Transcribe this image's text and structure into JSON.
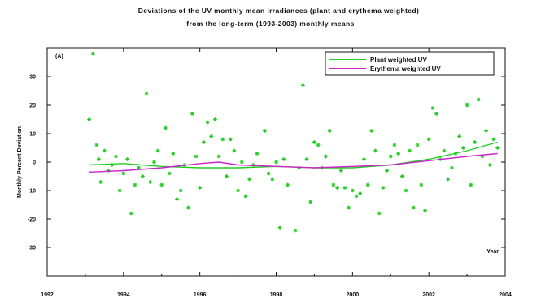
{
  "title_line1": "Deviations of the UV monthly mean irradiances (plant and erythema weighted)",
  "title_line2": "from the long-term (1993-2003) monthly means",
  "colors": {
    "plant": "#22cc22",
    "erythema": "#cc22cc",
    "axis": "#111111"
  },
  "chart_data": {
    "type": "scatter",
    "panel_label": "(A)",
    "xlabel": "Year",
    "ylabel": "Monthly Percent Deviation",
    "xlim": [
      1992,
      2004
    ],
    "ylim": [
      -40,
      40
    ],
    "x_ticks": [
      1992,
      1994,
      1996,
      1998,
      2000,
      2002,
      2004
    ],
    "y_ticks": [
      30,
      20,
      10,
      0,
      -10,
      -20,
      -30
    ],
    "legend": [
      {
        "label": "Plant weighted UV",
        "color": "#22cc22"
      },
      {
        "label": "Erythema weighted UV",
        "color": "#cc22cc"
      }
    ],
    "legend_position": "top-right",
    "grid": false,
    "series": [
      {
        "name": "Plant weighted UV",
        "kind": "scatter",
        "marker": "star",
        "color": "#22cc22",
        "points": [
          [
            1993.1,
            15
          ],
          [
            1993.2,
            38
          ],
          [
            1993.3,
            6
          ],
          [
            1993.35,
            1
          ],
          [
            1993.4,
            -7
          ],
          [
            1993.5,
            4
          ],
          [
            1993.6,
            -3
          ],
          [
            1993.7,
            -1
          ],
          [
            1993.8,
            2
          ],
          [
            1993.9,
            -10
          ],
          [
            1994.0,
            -4
          ],
          [
            1994.1,
            1
          ],
          [
            1994.2,
            -18
          ],
          [
            1994.3,
            -8
          ],
          [
            1994.4,
            -2
          ],
          [
            1994.5,
            -5
          ],
          [
            1994.6,
            24
          ],
          [
            1994.7,
            -7
          ],
          [
            1994.8,
            0
          ],
          [
            1994.9,
            4
          ],
          [
            1995.0,
            -8
          ],
          [
            1995.1,
            12
          ],
          [
            1995.2,
            -4
          ],
          [
            1995.3,
            3
          ],
          [
            1995.4,
            -13
          ],
          [
            1995.5,
            -10
          ],
          [
            1995.6,
            -1
          ],
          [
            1995.7,
            -16
          ],
          [
            1995.8,
            17
          ],
          [
            1995.9,
            2
          ],
          [
            1996.0,
            -9
          ],
          [
            1996.1,
            7
          ],
          [
            1996.2,
            14
          ],
          [
            1996.3,
            9
          ],
          [
            1996.4,
            15
          ],
          [
            1996.5,
            2
          ],
          [
            1996.6,
            8
          ],
          [
            1996.7,
            -5
          ],
          [
            1996.8,
            8
          ],
          [
            1996.9,
            4
          ],
          [
            1997.0,
            -10
          ],
          [
            1997.1,
            0
          ],
          [
            1997.2,
            -12
          ],
          [
            1997.3,
            -6
          ],
          [
            1997.4,
            -1
          ],
          [
            1997.5,
            3
          ],
          [
            1997.7,
            11
          ],
          [
            1997.8,
            -4
          ],
          [
            1997.9,
            -6
          ],
          [
            1998.0,
            0
          ],
          [
            1998.1,
            -23
          ],
          [
            1998.2,
            1
          ],
          [
            1998.3,
            -8
          ],
          [
            1998.5,
            -24
          ],
          [
            1998.6,
            -2
          ],
          [
            1998.7,
            27
          ],
          [
            1998.8,
            1
          ],
          [
            1998.9,
            -14
          ],
          [
            1999.0,
            7
          ],
          [
            1999.1,
            6
          ],
          [
            1999.2,
            -2
          ],
          [
            1999.3,
            2
          ],
          [
            1999.4,
            11
          ],
          [
            1999.5,
            -8
          ],
          [
            1999.6,
            -9
          ],
          [
            1999.7,
            -3
          ],
          [
            1999.8,
            -9
          ],
          [
            1999.9,
            -16
          ],
          [
            2000.0,
            -10
          ],
          [
            2000.1,
            -12
          ],
          [
            2000.2,
            -11
          ],
          [
            2000.3,
            1
          ],
          [
            2000.4,
            -8
          ],
          [
            2000.5,
            11
          ],
          [
            2000.6,
            4
          ],
          [
            2000.7,
            -18
          ],
          [
            2000.8,
            -9
          ],
          [
            2000.9,
            -3
          ],
          [
            2001.0,
            2
          ],
          [
            2001.1,
            6
          ],
          [
            2001.2,
            3
          ],
          [
            2001.3,
            -5
          ],
          [
            2001.4,
            -10
          ],
          [
            2001.5,
            4
          ],
          [
            2001.6,
            -16
          ],
          [
            2001.7,
            6
          ],
          [
            2001.8,
            -8
          ],
          [
            2001.9,
            -17
          ],
          [
            2002.0,
            8
          ],
          [
            2002.1,
            19
          ],
          [
            2002.2,
            17
          ],
          [
            2002.3,
            1
          ],
          [
            2002.4,
            4
          ],
          [
            2002.5,
            -6
          ],
          [
            2002.6,
            -2
          ],
          [
            2002.7,
            3
          ],
          [
            2002.8,
            9
          ],
          [
            2002.9,
            5
          ],
          [
            2003.0,
            20
          ],
          [
            2003.1,
            -8
          ],
          [
            2003.2,
            7
          ],
          [
            2003.3,
            22
          ],
          [
            2003.4,
            2
          ],
          [
            2003.5,
            11
          ],
          [
            2003.6,
            -1
          ],
          [
            2003.7,
            8
          ],
          [
            2003.8,
            5
          ]
        ]
      },
      {
        "name": "Plant weighted UV",
        "kind": "line",
        "color": "#22cc22",
        "points": [
          [
            1993.1,
            -1
          ],
          [
            1994.0,
            -0.5
          ],
          [
            1995.0,
            -1.5
          ],
          [
            1996.0,
            -2
          ],
          [
            1997.0,
            -2
          ],
          [
            1998.0,
            -1.5
          ],
          [
            1999.0,
            -2
          ],
          [
            2000.0,
            -2
          ],
          [
            2001.0,
            -1
          ],
          [
            2002.0,
            1
          ],
          [
            2003.0,
            4
          ],
          [
            2003.8,
            7
          ]
        ]
      },
      {
        "name": "Erythema weighted UV",
        "kind": "line",
        "color": "#cc22cc",
        "points": [
          [
            1993.1,
            -3.5
          ],
          [
            1994.0,
            -3
          ],
          [
            1995.0,
            -2
          ],
          [
            1996.0,
            -0.5
          ],
          [
            1996.5,
            0
          ],
          [
            1997.0,
            -1
          ],
          [
            1998.0,
            -1.5
          ],
          [
            1999.0,
            -2
          ],
          [
            2000.0,
            -1.5
          ],
          [
            2001.0,
            -1
          ],
          [
            2002.0,
            0.5
          ],
          [
            2003.0,
            2
          ],
          [
            2003.8,
            3
          ]
        ]
      }
    ]
  }
}
